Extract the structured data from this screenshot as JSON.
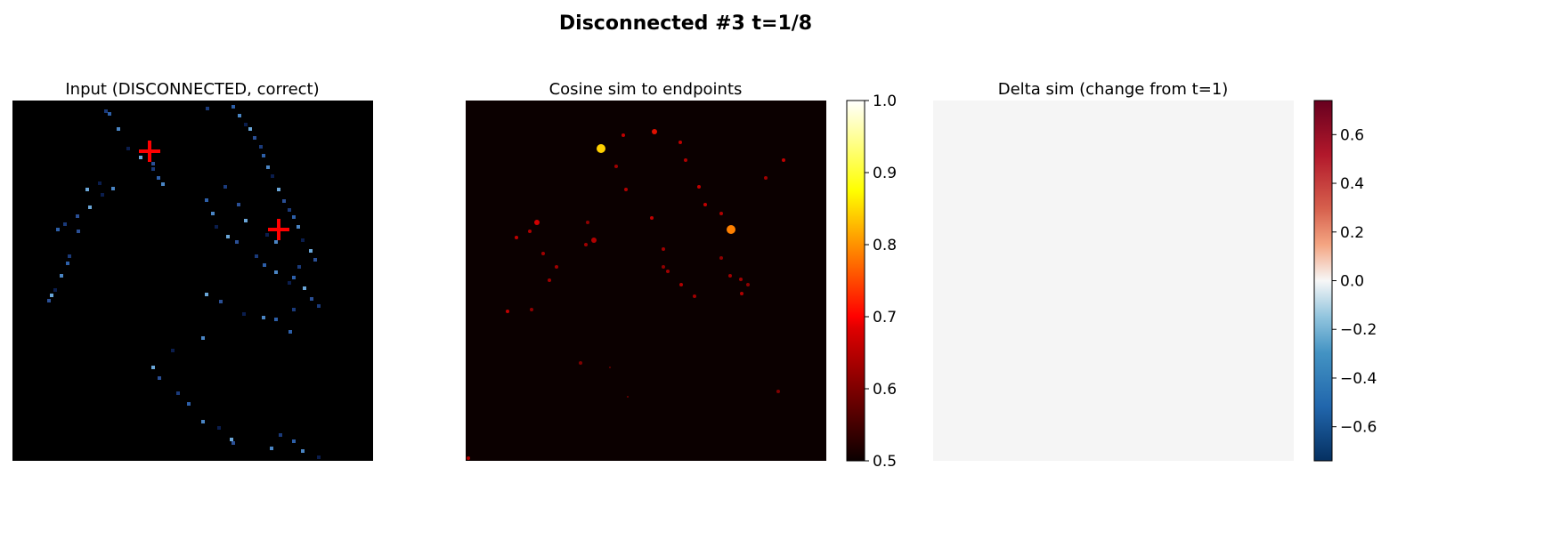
{
  "figure": {
    "suptitle": "Disconnected #3  t=1/8"
  },
  "chart_data": [
    {
      "type": "heatmap",
      "title": "Input (DISCONNECTED, correct)",
      "colormap": "Blues_r on black",
      "markers": {
        "style": "red plus",
        "count": 2,
        "color": "#ff0000"
      },
      "axes": "off"
    },
    {
      "type": "heatmap",
      "title": "Cosine sim to endpoints",
      "colormap": "hot",
      "colorbar": {
        "range": [
          0.5,
          1.0
        ],
        "ticks": [
          "1.0",
          "0.9",
          "0.8",
          "0.7",
          "0.6",
          "0.5"
        ],
        "tick_values": [
          1.0,
          0.9,
          0.8,
          0.7,
          0.6,
          0.5
        ]
      },
      "axes": "off"
    },
    {
      "type": "heatmap",
      "title": "Delta sim (change from t=1)",
      "colormap": "RdBu_r",
      "uniform_value": 0.0,
      "fill_color": "#f5f5f5",
      "colorbar": {
        "range": [
          -0.74,
          0.74
        ],
        "ticks": [
          "0.6",
          "0.4",
          "0.2",
          "0.0",
          "−0.2",
          "−0.4",
          "−0.6"
        ],
        "tick_values": [
          0.6,
          0.4,
          0.2,
          0.0,
          -0.2,
          -0.4,
          -0.6
        ]
      },
      "axes": "off"
    }
  ]
}
